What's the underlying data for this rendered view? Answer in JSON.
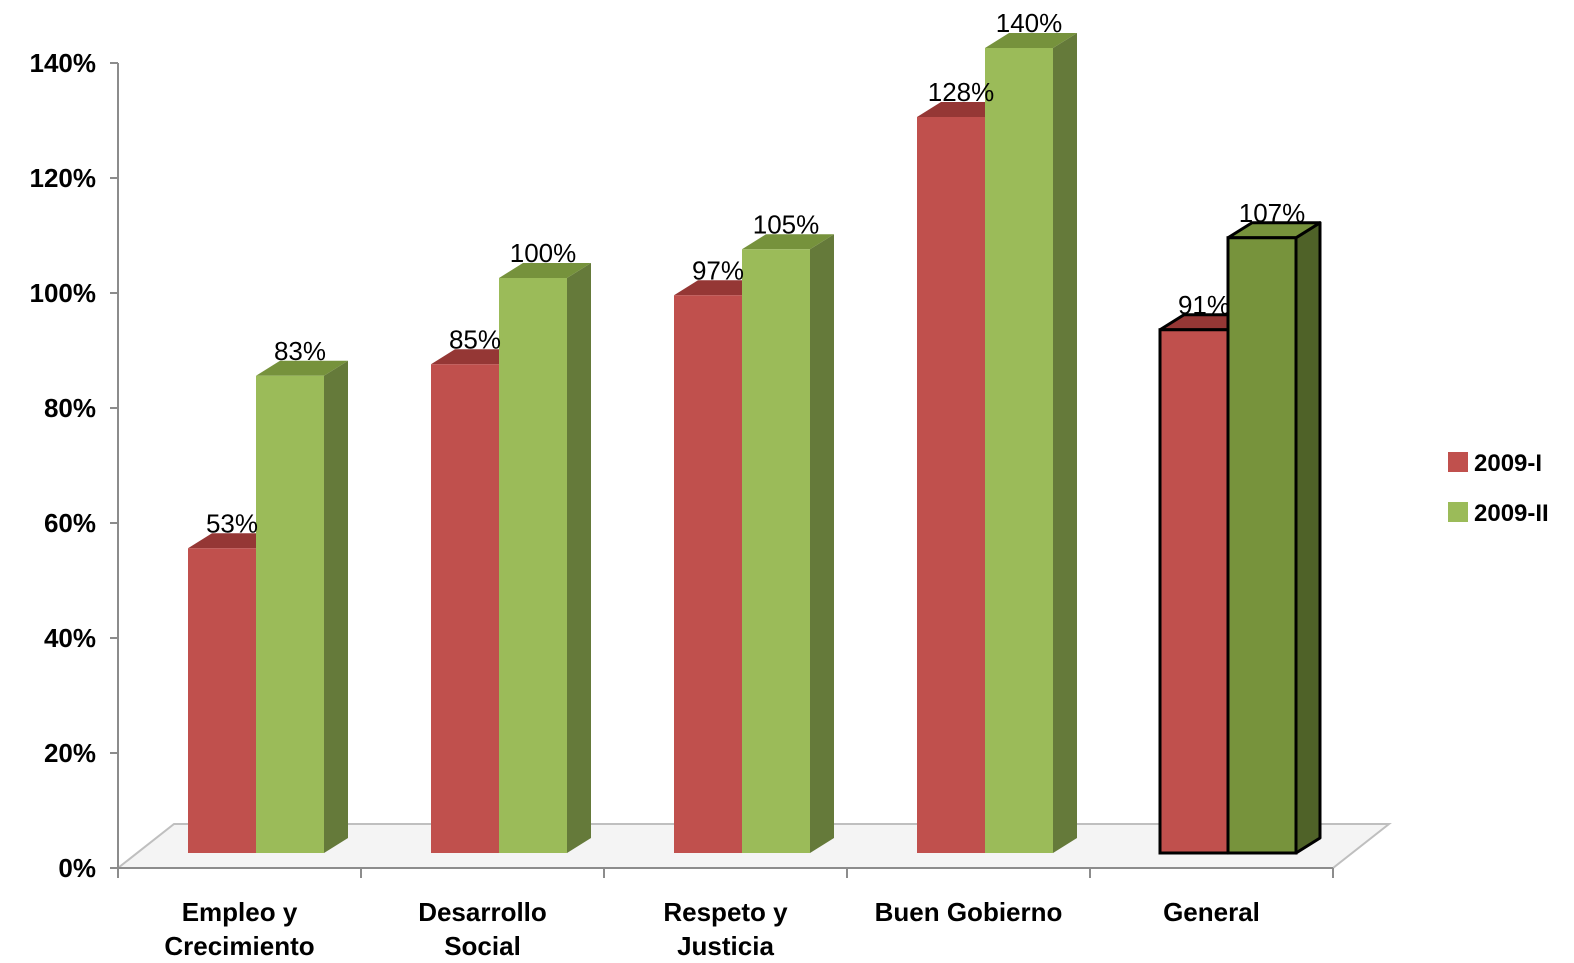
{
  "chart_data": {
    "type": "bar",
    "title": "",
    "xlabel": "",
    "ylabel": "",
    "ylim": [
      0,
      140
    ],
    "yticks": [
      0,
      20,
      40,
      60,
      80,
      100,
      120,
      140
    ],
    "ytick_labels": [
      "0%",
      "20%",
      "40%",
      "60%",
      "80%",
      "100%",
      "120%",
      "140%"
    ],
    "value_suffix": "%",
    "categories": [
      [
        "Empleo y",
        "Crecimiento"
      ],
      [
        "Desarrollo",
        "Social"
      ],
      [
        "Respeto y",
        "Justicia"
      ],
      [
        "Buen Gobierno"
      ],
      [
        "General"
      ]
    ],
    "series": [
      {
        "name": "2009-I",
        "values": [
          53,
          85,
          97,
          128,
          91
        ],
        "value_labels": [
          "53%",
          "85%",
          "97%",
          "128%",
          "91%"
        ]
      },
      {
        "name": "2009-II",
        "values": [
          83,
          100,
          105,
          140,
          107
        ],
        "value_labels": [
          "83%",
          "100%",
          "105%",
          "140%",
          "107%"
        ]
      }
    ],
    "legend_position": "right",
    "grid": false,
    "highlighted_category": "General",
    "colors": {
      "series_1_front": "#c0504d",
      "series_1_top": "#953735",
      "series_1_side": "#8c3330",
      "series_2_front": "#9bbb59",
      "series_2_top": "#76923c",
      "series_2_side": "#657a3a",
      "series_2_highlight_front": "#77933c",
      "series_2_highlight_side": "#4f6228"
    }
  }
}
